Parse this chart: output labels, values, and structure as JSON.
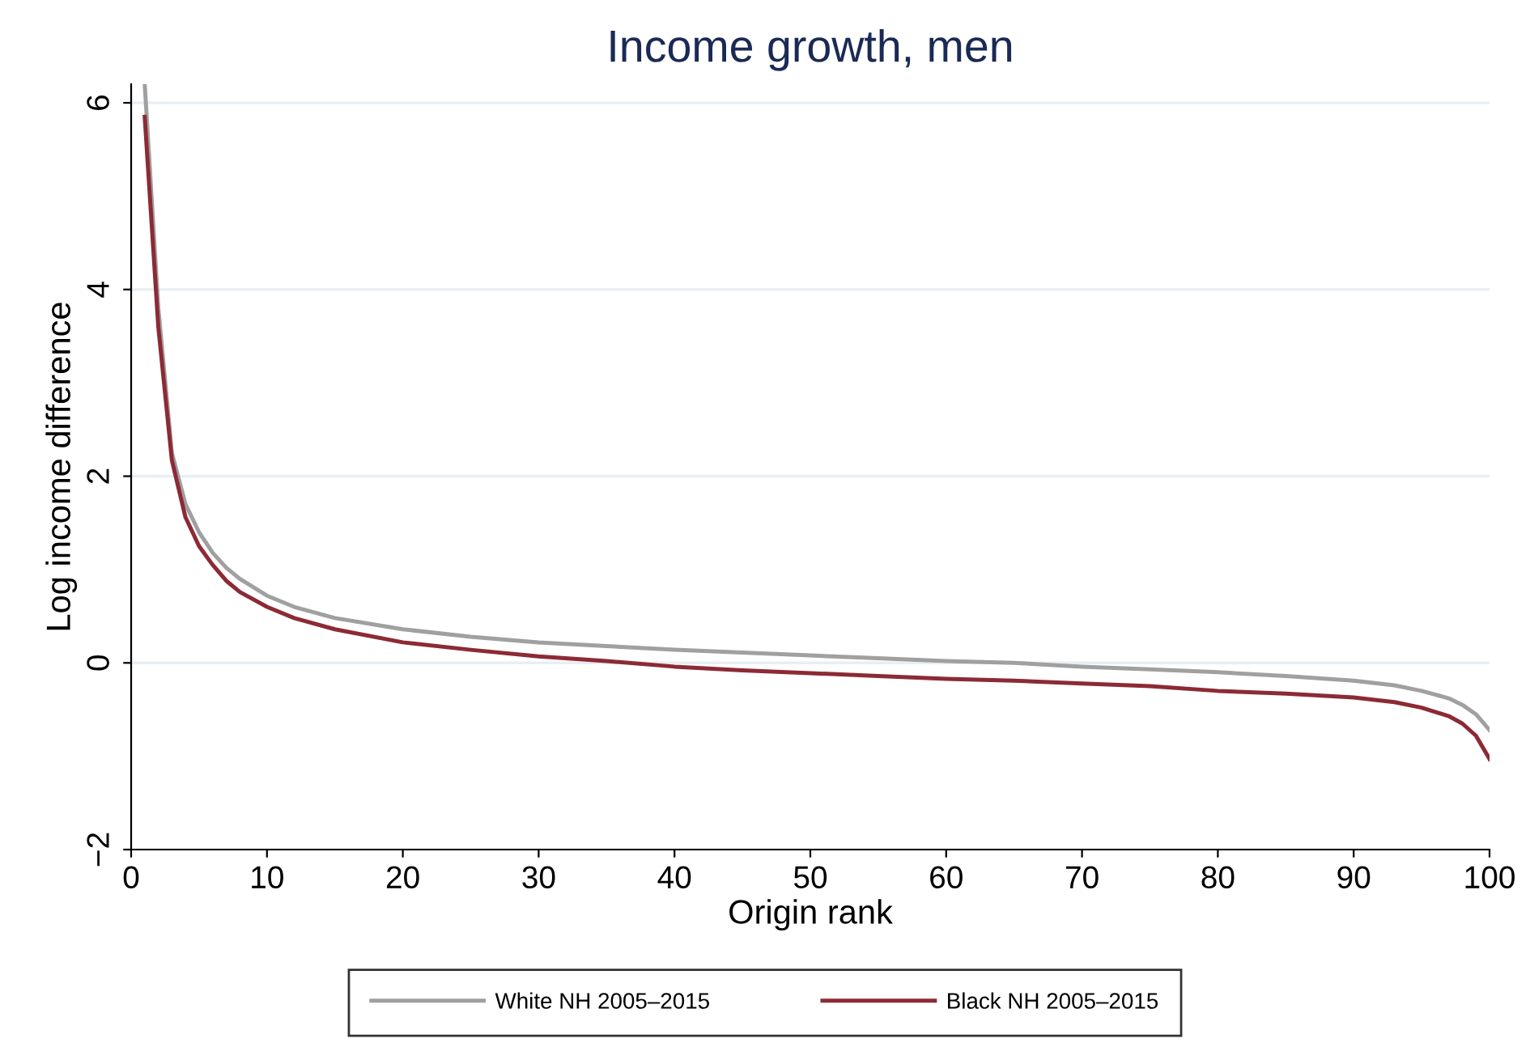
{
  "chart_data": {
    "type": "line",
    "title": "Income growth, men",
    "xlabel": "Origin rank",
    "ylabel": "Log income difference",
    "xlim": [
      0,
      100
    ],
    "ylim": [
      -2,
      6.2
    ],
    "xticks": [
      0,
      10,
      20,
      30,
      40,
      50,
      60,
      70,
      80,
      90,
      100
    ],
    "yticks": [
      {
        "value": -2,
        "label": "−2"
      },
      0,
      2,
      4,
      6
    ],
    "grid": "y",
    "legend": "bottom",
    "line_style": "solid",
    "marker": "none",
    "series": [
      {
        "name": "White NH 2005–2015",
        "color": "#a0a0a0",
        "x": [
          1,
          2,
          3,
          4,
          5,
          6,
          7,
          8,
          10,
          12,
          15,
          20,
          25,
          30,
          35,
          40,
          45,
          50,
          55,
          60,
          65,
          70,
          75,
          80,
          85,
          90,
          93,
          95,
          97,
          98,
          99,
          100
        ],
        "values": [
          6.2,
          3.8,
          2.25,
          1.7,
          1.4,
          1.18,
          1.02,
          0.9,
          0.72,
          0.6,
          0.48,
          0.36,
          0.28,
          0.22,
          0.18,
          0.14,
          0.11,
          0.08,
          0.05,
          0.02,
          0.0,
          -0.04,
          -0.07,
          -0.1,
          -0.14,
          -0.19,
          -0.24,
          -0.3,
          -0.38,
          -0.45,
          -0.55,
          -0.72
        ]
      },
      {
        "name": "Black NH 2005–2015",
        "color": "#8c2a35",
        "x": [
          1,
          2,
          3,
          4,
          5,
          6,
          7,
          8,
          10,
          12,
          15,
          20,
          25,
          30,
          35,
          40,
          45,
          50,
          55,
          60,
          65,
          70,
          75,
          80,
          85,
          90,
          93,
          95,
          97,
          98,
          99,
          100
        ],
        "values": [
          5.85,
          3.6,
          2.17,
          1.56,
          1.25,
          1.05,
          0.88,
          0.76,
          0.6,
          0.48,
          0.36,
          0.22,
          0.14,
          0.07,
          0.02,
          -0.04,
          -0.08,
          -0.11,
          -0.14,
          -0.17,
          -0.19,
          -0.22,
          -0.25,
          -0.3,
          -0.33,
          -0.37,
          -0.42,
          -0.48,
          -0.57,
          -0.65,
          -0.78,
          -1.03
        ]
      }
    ]
  }
}
